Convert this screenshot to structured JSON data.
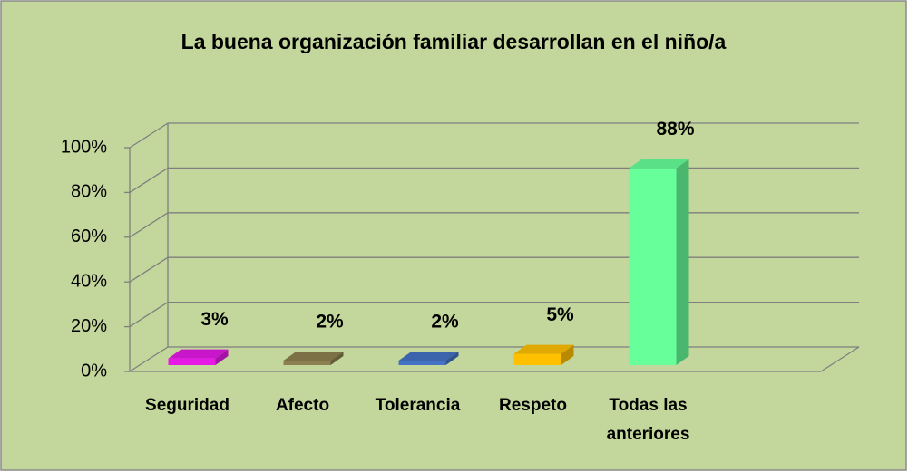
{
  "chart_data": {
    "type": "bar3d",
    "title": "La buena organización familiar desarrollan en el niño/a",
    "categories": [
      "Seguridad",
      "Afecto",
      "Tolerancia",
      "Respeto",
      "Todas las anteriores"
    ],
    "series": [
      {
        "colors": [
          "#e619e6",
          "#8c7f50",
          "#4472c4",
          "#ffc000",
          "#66ff99"
        ],
        "values": [
          3,
          2,
          2,
          5,
          88
        ],
        "value_labels": [
          "3%",
          "2%",
          "2%",
          "5%",
          "88%"
        ]
      }
    ],
    "ylim": [
      0,
      100
    ],
    "yticks": [
      {
        "value": 0,
        "label": "0%"
      },
      {
        "value": 20,
        "label": "20%"
      },
      {
        "value": 40,
        "label": "40%"
      },
      {
        "value": 60,
        "label": "60%"
      },
      {
        "value": 80,
        "label": "80%"
      },
      {
        "value": 100,
        "label": "100%"
      }
    ],
    "grid": true
  }
}
